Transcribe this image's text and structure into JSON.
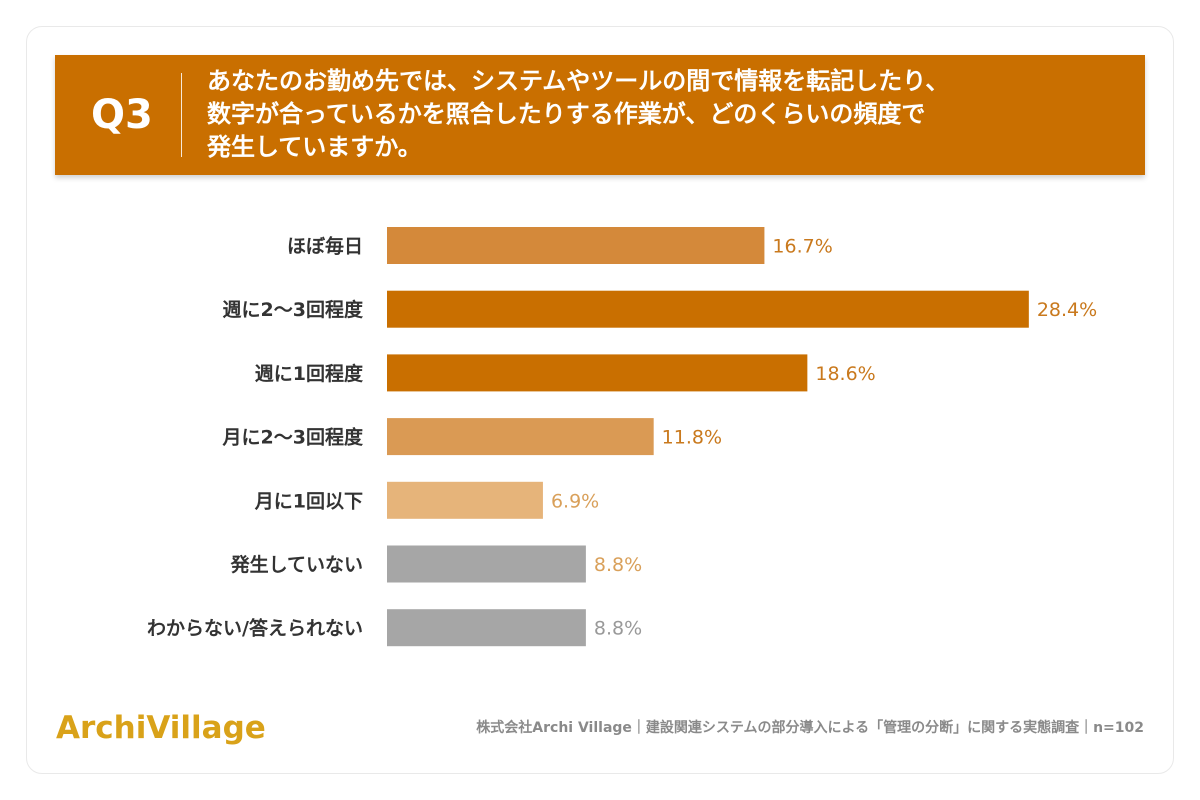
{
  "question": {
    "number": "Q3",
    "lines": [
      "あなたのお勤め先では、システムやツールの間で情報を転記したり、",
      "数字が合っているかを照合したりする作業が、どのくらいの頻度で",
      "発生していますか。"
    ]
  },
  "chart_data": {
    "type": "bar",
    "orientation": "horizontal",
    "categories": [
      "ほぼ毎日",
      "週に2～3回程度",
      "週に1回程度",
      "月に2～3回程度",
      "月に1回以下",
      "発生していない",
      "わからない/答えられない"
    ],
    "values": [
      16.7,
      28.4,
      18.6,
      11.8,
      6.9,
      8.8,
      8.8
    ],
    "value_labels": [
      "16.7%",
      "28.4%",
      "18.6%",
      "11.8%",
      "6.9%",
      "8.8%",
      "8.8%"
    ],
    "bar_colors": [
      "#d4893a",
      "#c96f00",
      "#c96f00",
      "#da9a54",
      "#e6b47a",
      "#a6a6a6",
      "#a6a6a6"
    ],
    "label_colors": [
      "#c9791d",
      "#c9791d",
      "#c9791d",
      "#c9791d",
      "#d9a05a",
      "#d9a05a",
      "#999999"
    ],
    "xlim": [
      0,
      30
    ],
    "grid": false,
    "legend": "none"
  },
  "footer": {
    "logo": "ArchiVillage",
    "note": "株式会社Archi Village｜建設関連システムの部分導入による「管理の分断」に関する実態調査｜n=102"
  },
  "colors": {
    "accent": "#c96f00",
    "logo": "#d9a219",
    "category_text": "#333333"
  }
}
